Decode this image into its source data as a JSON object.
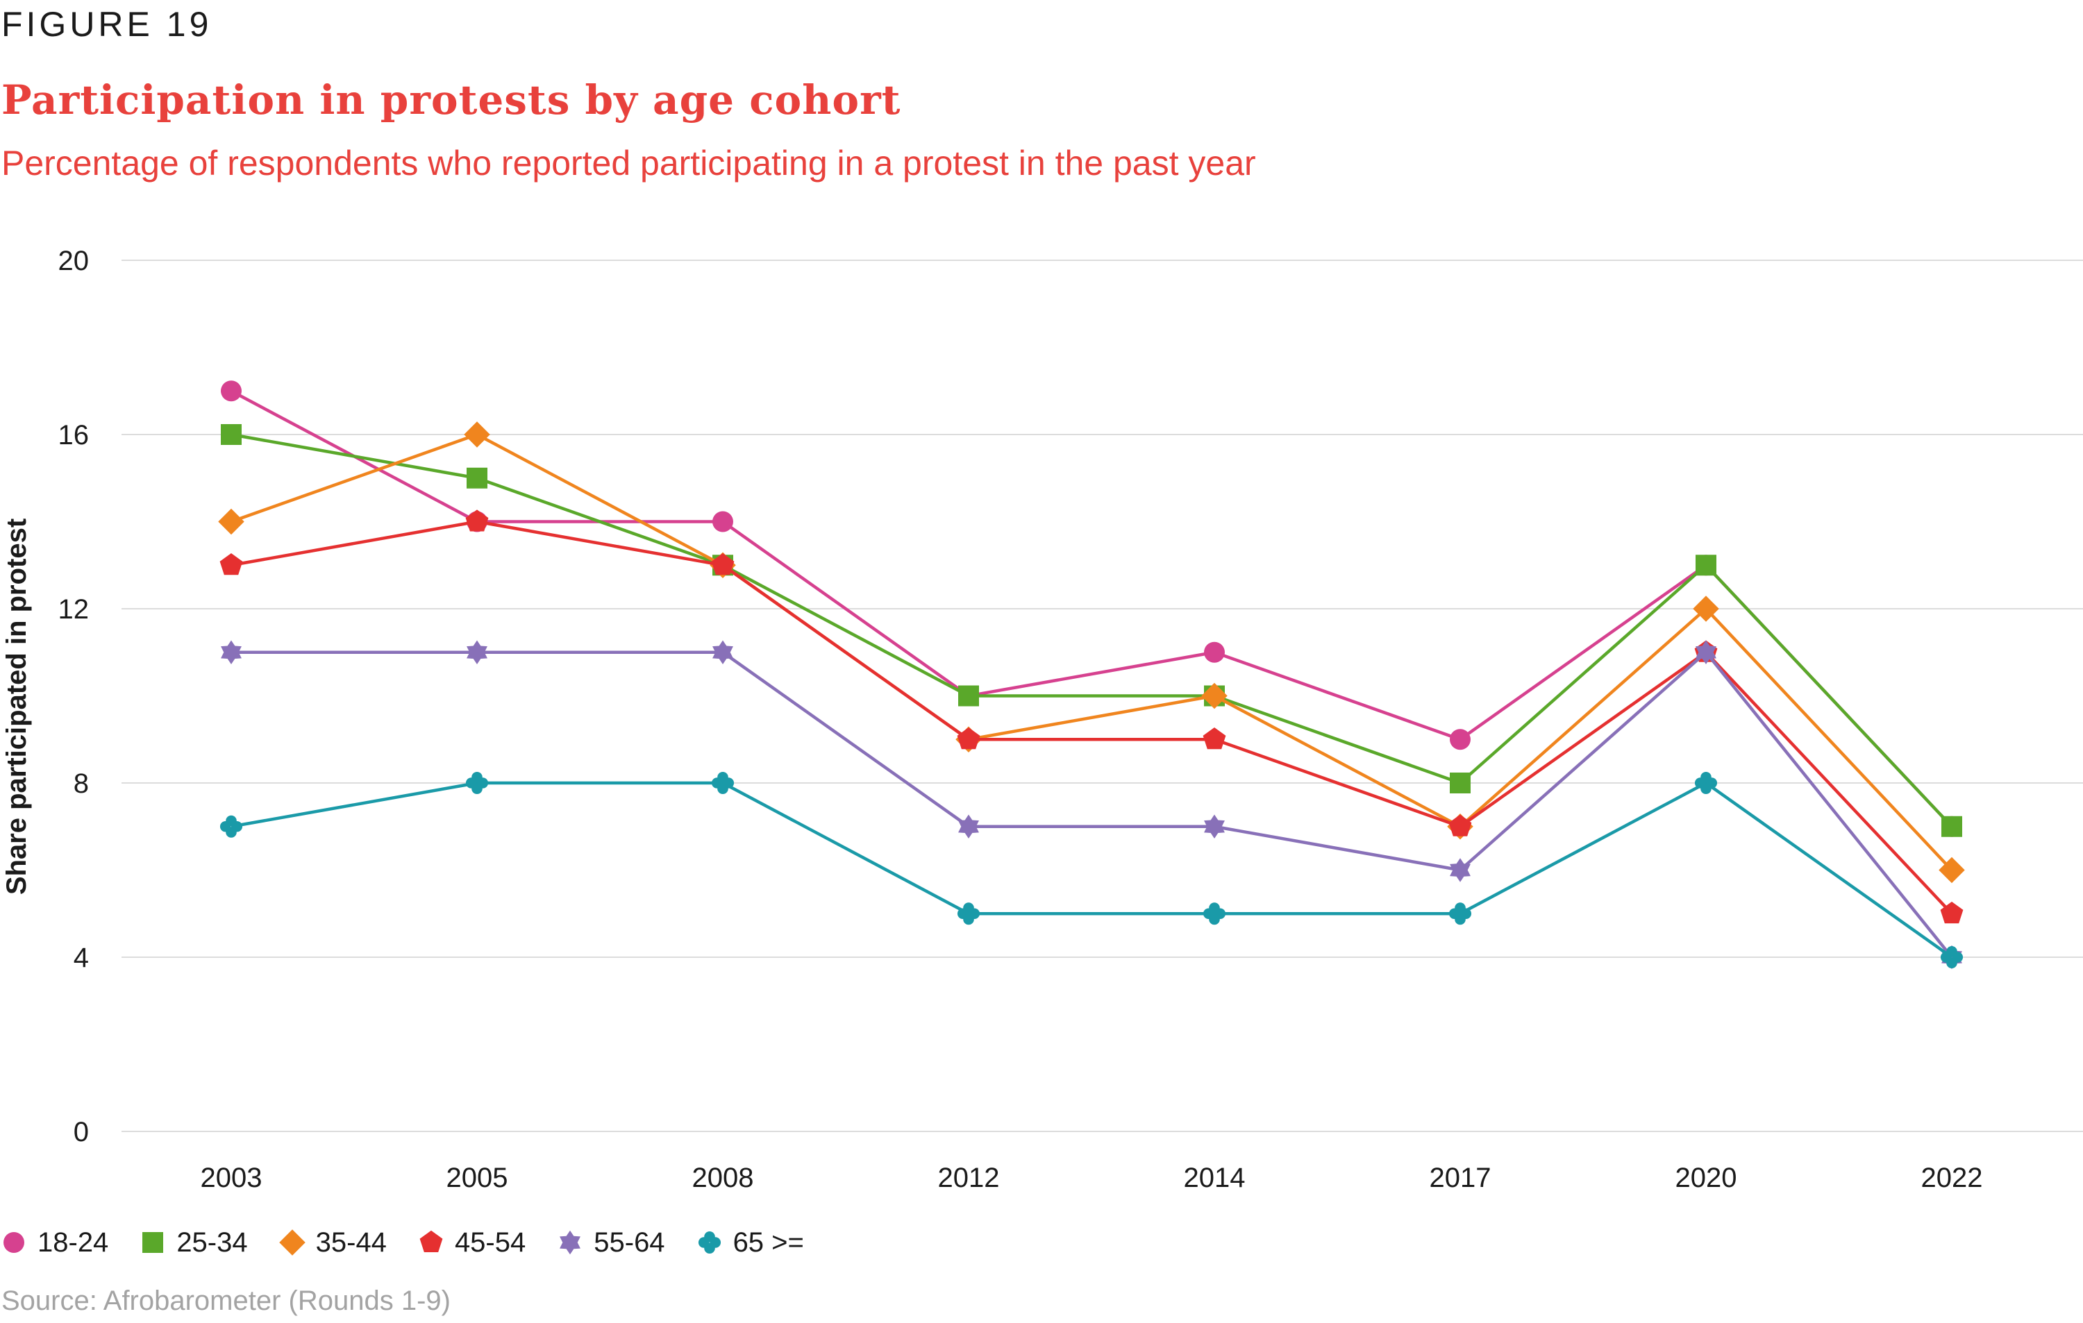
{
  "figure_label": "FIGURE 19",
  "title": "Participation in protests by age cohort",
  "subtitle": "Percentage of respondents who reported participating in a protest in the past year",
  "source": "Source: Afrobarometer (Rounds 1-9)",
  "chart_data": {
    "type": "line",
    "title": "Participation in protests by age cohort",
    "subtitle": "Percentage of respondents who reported participating in a protest in the past year",
    "xlabel": "",
    "ylabel": "Share participated in protest",
    "x": [
      "2003",
      "2005",
      "2008",
      "2012",
      "2014",
      "2017",
      "2020",
      "2022"
    ],
    "ylim": [
      0,
      20
    ],
    "yticks": [
      "0",
      "4",
      "8",
      "12",
      "16",
      "20"
    ],
    "grid": true,
    "legend_position": "bottom-left",
    "series": [
      {
        "name": "18-24",
        "color": "#d6418f",
        "marker": "circle",
        "values": [
          17,
          14,
          14,
          10,
          11,
          9,
          13,
          7
        ]
      },
      {
        "name": "25-34",
        "color": "#5aa82a",
        "marker": "square",
        "values": [
          16,
          15,
          13,
          10,
          10,
          8,
          13,
          7
        ]
      },
      {
        "name": "35-44",
        "color": "#f0851e",
        "marker": "diamond",
        "values": [
          14,
          16,
          13,
          9,
          10,
          7,
          12,
          6
        ]
      },
      {
        "name": "45-54",
        "color": "#e53030",
        "marker": "pentagon",
        "values": [
          13,
          14,
          13,
          9,
          9,
          7,
          11,
          5
        ]
      },
      {
        "name": "55-64",
        "color": "#8870b8",
        "marker": "star",
        "values": [
          11,
          11,
          11,
          7,
          7,
          6,
          11,
          4
        ]
      },
      {
        "name": "65 >=",
        "color": "#1a9aa8",
        "marker": "flower",
        "values": [
          7,
          8,
          8,
          5,
          5,
          5,
          8,
          4
        ]
      }
    ]
  }
}
